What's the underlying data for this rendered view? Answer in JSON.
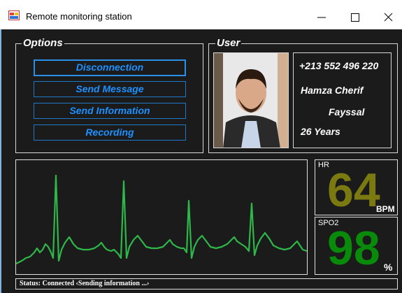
{
  "window": {
    "title": "Remote monitoring station"
  },
  "options": {
    "title": "Options",
    "buttons": [
      "Disconnection",
      "Send Message",
      "Send Information",
      "Recording"
    ]
  },
  "user": {
    "title": "User",
    "phone": "+213 552 496 220",
    "name": "Hamza Cherif",
    "surname": "Fayssal",
    "age": "26 Years"
  },
  "vitals": {
    "hr": {
      "label": "HR",
      "value": "64",
      "unit": "BPM"
    },
    "spo2": {
      "label": "SPO2",
      "value": "98",
      "unit": "%"
    }
  },
  "status": "Status: Connected ‹Sending information ...›"
}
